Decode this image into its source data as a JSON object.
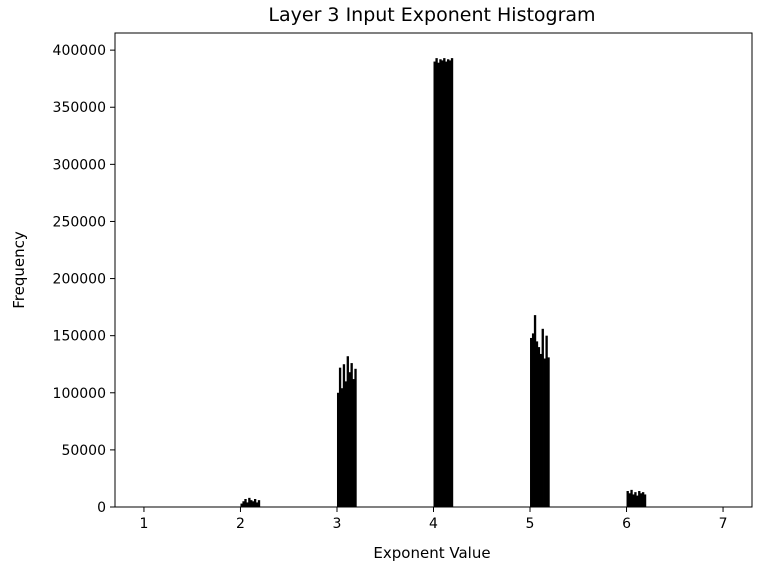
{
  "chart_data": {
    "type": "bar",
    "title": "Layer 3 Input Exponent Histogram",
    "xlabel": "Exponent Value",
    "ylabel": "Frequency",
    "xlim": [
      0.7,
      7.3
    ],
    "ylim": [
      0,
      415000
    ],
    "grid": false,
    "bar_color": "#000000",
    "x_ticks": [
      1,
      2,
      3,
      4,
      5,
      6,
      7
    ],
    "x_tick_labels": [
      "1",
      "2",
      "3",
      "4",
      "5",
      "6",
      "7"
    ],
    "y_ticks": [
      0,
      50000,
      100000,
      150000,
      200000,
      250000,
      300000,
      350000,
      400000
    ],
    "y_tick_labels": [
      "0",
      "50000",
      "100000",
      "150000",
      "200000",
      "250000",
      "300000",
      "350000",
      "400000"
    ],
    "x": [
      2.0,
      2.02,
      2.04,
      2.06,
      2.08,
      2.1,
      2.12,
      2.14,
      2.16,
      2.18,
      3.0,
      3.02,
      3.04,
      3.06,
      3.08,
      3.1,
      3.12,
      3.14,
      3.16,
      3.18,
      4.0,
      4.02,
      4.04,
      4.06,
      4.08,
      4.1,
      4.12,
      4.14,
      4.16,
      4.18,
      5.0,
      5.02,
      5.04,
      5.06,
      5.08,
      5.1,
      5.12,
      5.14,
      5.16,
      5.18,
      6.0,
      6.02,
      6.04,
      6.06,
      6.08,
      6.1,
      6.12,
      6.14,
      6.16,
      6.18
    ],
    "values": [
      3000,
      5000,
      7000,
      4000,
      8000,
      6000,
      5000,
      7000,
      4000,
      6000,
      100000,
      122000,
      104000,
      125000,
      110000,
      132000,
      118000,
      126000,
      112000,
      121000,
      390000,
      393000,
      389000,
      392000,
      391000,
      393000,
      390000,
      392000,
      391000,
      393000,
      148000,
      152000,
      168000,
      145000,
      140000,
      134000,
      156000,
      130000,
      150000,
      131000,
      14000,
      12000,
      15000,
      11000,
      13000,
      10000,
      14000,
      12000,
      13000,
      11000
    ]
  }
}
